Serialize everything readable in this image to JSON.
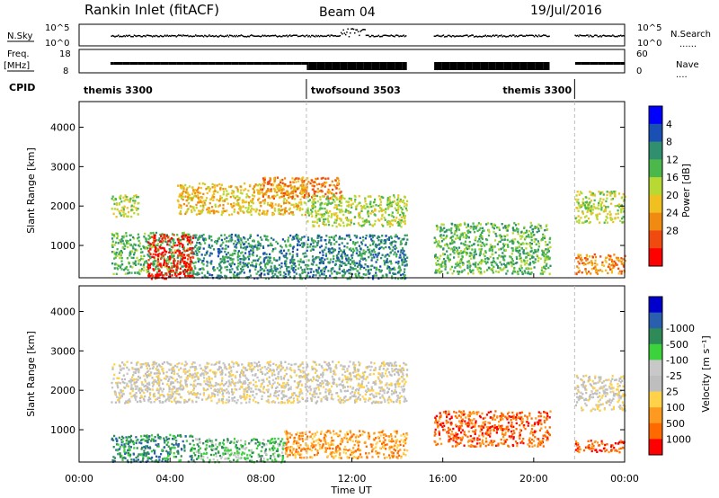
{
  "header": {
    "station": "Rankin Inlet (fitACF)",
    "beam": "Beam 04",
    "date": "19/Jul/2016"
  },
  "strip_labels": {
    "nsky": "N.Sky",
    "nsearch": "N.Search",
    "freq_top": "Freq.",
    "freq_unit": "[MHz]",
    "nave": "Nave",
    "cpid": "CPID",
    "nsky_ticks": [
      "10^5",
      "10^0"
    ],
    "nsearch_ticks": [
      "10^5",
      "10^0"
    ],
    "freq_ticks": [
      "18",
      "8"
    ],
    "nave_ticks": [
      "60",
      "0"
    ],
    "dots": "......",
    "dots_short": "...."
  },
  "cpid_segments": [
    {
      "label": "themis 3300",
      "start_h": 0.0,
      "end_h": 10.0
    },
    {
      "label": "twofsound 3503",
      "start_h": 10.0,
      "end_h": 21.8
    },
    {
      "label": "themis 3300",
      "start_h": 21.8,
      "end_h": 24.0
    }
  ],
  "colors": {
    "power": [
      "#0000ff",
      "#1a4fb3",
      "#2f8f6f",
      "#4cb84c",
      "#b8d834",
      "#f0c020",
      "#f08a10",
      "#f04a10",
      "#ff0000"
    ],
    "velocity": [
      "#ff0000",
      "#ff6a00",
      "#ff9a20",
      "#ffd24a",
      "#bebebe",
      "#c8c8c8",
      "#3cd23c",
      "#2e8b57",
      "#2a5fb0",
      "#0000cc"
    ],
    "trace": "#000000",
    "dash": "#bdbdbd"
  },
  "chart_data": [
    {
      "type": "heatmap",
      "title": "Power",
      "ylabel": "Slant Range [km]",
      "xlabel": "",
      "x_range_h": [
        0,
        24
      ],
      "ylim": [
        180,
        4650
      ],
      "y_ticks": [
        "1000",
        "2000",
        "3000",
        "4000"
      ],
      "colorbar_label": "Power [dB]",
      "colorbar_ticks": [
        "4",
        "8",
        "12",
        "16",
        "20",
        "24",
        "28"
      ],
      "features": [
        {
          "t0": 1.4,
          "t1": 2.6,
          "r0": 1750,
          "r1": 2300,
          "level": 4
        },
        {
          "t0": 4.3,
          "t1": 10.0,
          "r0": 1800,
          "r1": 2600,
          "level": 5
        },
        {
          "t0": 8.0,
          "t1": 11.5,
          "r0": 2200,
          "r1": 2750,
          "level": 6
        },
        {
          "t0": 10.0,
          "t1": 14.4,
          "r0": 1500,
          "r1": 2300,
          "level": 4
        },
        {
          "t0": 1.4,
          "t1": 5.0,
          "r0": 300,
          "r1": 1350,
          "level": 3
        },
        {
          "t0": 3.0,
          "t1": 5.0,
          "r0": 180,
          "r1": 1300,
          "level": 8
        },
        {
          "t0": 5.0,
          "t1": 14.4,
          "r0": 180,
          "r1": 1300,
          "level": 2
        },
        {
          "t0": 15.6,
          "t1": 20.7,
          "r0": 300,
          "r1": 1600,
          "level": 3
        },
        {
          "t0": 21.8,
          "t1": 24.0,
          "r0": 1600,
          "r1": 2400,
          "level": 4
        },
        {
          "t0": 21.8,
          "t1": 24.0,
          "r0": 300,
          "r1": 800,
          "level": 6
        }
      ]
    },
    {
      "type": "heatmap",
      "title": "Velocity",
      "ylabel": "Slant Range [km]",
      "xlabel": "Time UT",
      "x_range_h": [
        0,
        24
      ],
      "x_ticks": [
        "00:00",
        "04:00",
        "08:00",
        "12:00",
        "16:00",
        "20:00",
        "00:00"
      ],
      "ylim": [
        180,
        4650
      ],
      "y_ticks": [
        "1000",
        "2000",
        "3000",
        "4000"
      ],
      "colorbar_label": "Velocity [m s⁻¹]",
      "colorbar_ticks": [
        "1000",
        "500",
        "100",
        "25",
        "-25",
        "-100",
        "-500",
        "-1000"
      ],
      "features": [
        {
          "t0": 1.4,
          "t1": 14.4,
          "r0": 1700,
          "r1": 2750,
          "level": 4
        },
        {
          "t0": 1.4,
          "t1": 5.0,
          "r0": 200,
          "r1": 900,
          "level": 7
        },
        {
          "t0": 5.0,
          "t1": 9.0,
          "r0": 200,
          "r1": 800,
          "level": 6
        },
        {
          "t0": 9.0,
          "t1": 14.4,
          "r0": 300,
          "r1": 1000,
          "level": 2
        },
        {
          "t0": 15.6,
          "t1": 20.7,
          "r0": 600,
          "r1": 1500,
          "level": 1
        },
        {
          "t0": 21.8,
          "t1": 24.0,
          "r0": 450,
          "r1": 750,
          "level": 1
        },
        {
          "t0": 21.8,
          "t1": 24.0,
          "r0": 1500,
          "r1": 2400,
          "level": 4
        }
      ]
    }
  ]
}
